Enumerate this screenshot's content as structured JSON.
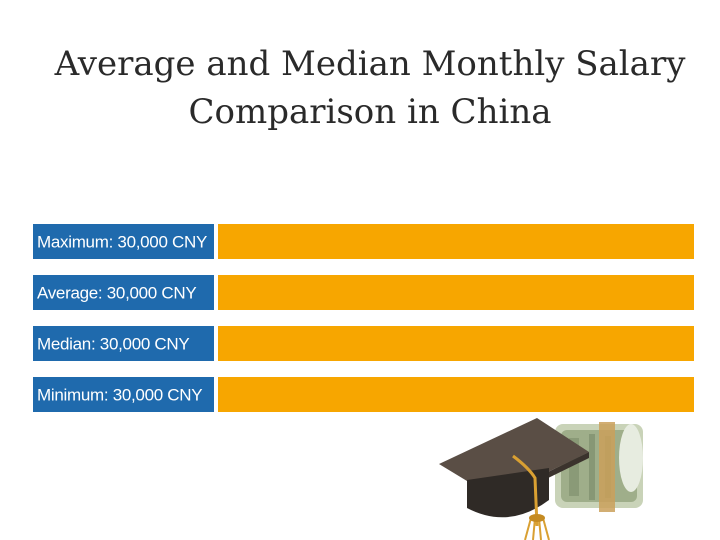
{
  "title": {
    "line1": "Average and Median Monthly Salary",
    "line2": "Comparison in China"
  },
  "colors": {
    "label_bg": "#1f6aad",
    "bar": "#f7a600",
    "label_text": "#ffffff"
  },
  "chart_data": {
    "type": "bar",
    "orientation": "horizontal",
    "categories": [
      "Maximum",
      "Average",
      "Median",
      "Minimum"
    ],
    "labels": [
      "Maximum: 30,000 CNY",
      "Average: 30,000 CNY",
      "Median: 30,000 CNY",
      "Minimum: 30,000 CNY"
    ],
    "values": [
      30000,
      30000,
      30000,
      30000
    ],
    "unit": "CNY",
    "xlim": [
      0,
      30000
    ],
    "grid": false,
    "legend": "none"
  },
  "image": {
    "icon": "graduation-cap-with-money-icon"
  }
}
